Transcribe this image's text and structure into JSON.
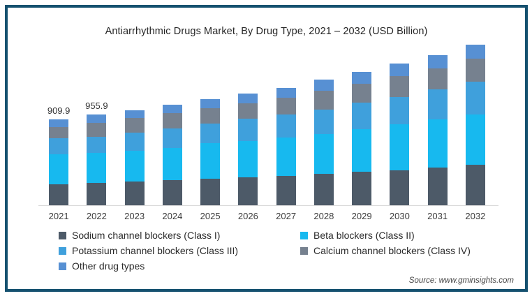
{
  "frame": {
    "border_color": "#15516f",
    "background": "#ffffff"
  },
  "source": "Source: www.gminsights.com",
  "chart_data": {
    "type": "bar",
    "stacked": true,
    "title": "Antiarrhythmic Drugs Market, By Drug Type, 2021 – 2032 (USD Billion)",
    "unit": "USD Billion",
    "categories": [
      "2021",
      "2022",
      "2023",
      "2024",
      "2025",
      "2026",
      "2027",
      "2028",
      "2029",
      "2030",
      "2031",
      "2032"
    ],
    "bar_value_labels": [
      "909.9",
      "955.9",
      "",
      "",
      "",
      "",
      "",
      "",
      "",
      "",
      "",
      ""
    ],
    "series": [
      {
        "key": "sodium",
        "name": "Sodium channel blockers (Class I)",
        "color": "#4d5a68",
        "values": [
          222,
          236,
          252,
          264,
          277,
          296,
          308,
          330,
          356,
          370,
          395,
          429
        ]
      },
      {
        "key": "beta",
        "name": "Beta blockers (Class II)",
        "color": "#17b9ef",
        "values": [
          320,
          318,
          327,
          344,
          376,
          386,
          411,
          420,
          445,
          484,
          514,
          531
        ]
      },
      {
        "key": "potassium",
        "name": "Potassium channel blockers (Class III)",
        "color": "#3fa0dc",
        "values": [
          165,
          169,
          190,
          201,
          207,
          234,
          238,
          263,
          280,
          291,
          314,
          344
        ]
      },
      {
        "key": "calcium",
        "name": "Calcium channel blockers (Class IV)",
        "color": "#76818f",
        "values": [
          123,
          151,
          155,
          167,
          167,
          164,
          180,
          197,
          204,
          221,
          226,
          246
        ]
      },
      {
        "key": "other",
        "name": "Other drug types",
        "color": "#5790d3",
        "values": [
          80,
          82,
          83,
          85,
          91,
          103,
          105,
          117,
          124,
          128,
          136,
          146
        ]
      }
    ],
    "totals": [
      910,
      956,
      1007,
      1061,
      1118,
      1183,
      1242,
      1327,
      1409,
      1494,
      1585,
      1696
    ],
    "axis_color": "#d9d9d9",
    "legend_position": "bottom-left",
    "grid": false,
    "ylim": [
      0,
      1755
    ]
  }
}
